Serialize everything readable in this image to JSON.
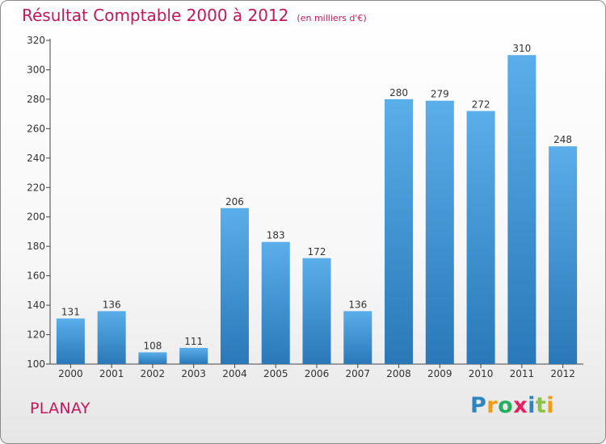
{
  "chart_data": {
    "type": "bar",
    "title": "Résultat Comptable 2000 à 2012",
    "subtitle": "(en milliers d'€)",
    "categories": [
      "2000",
      "2001",
      "2002",
      "2003",
      "2004",
      "2005",
      "2006",
      "2007",
      "2008",
      "2009",
      "2010",
      "2011",
      "2012"
    ],
    "values": [
      131,
      136,
      108,
      111,
      206,
      183,
      172,
      136,
      280,
      279,
      272,
      310,
      248
    ],
    "ylim": [
      100,
      320
    ],
    "yticks": [
      100,
      120,
      140,
      160,
      180,
      200,
      220,
      240,
      260,
      280,
      300,
      320
    ],
    "grid": false,
    "bar_color": "#3a8fd6"
  },
  "commune": "PLANAY",
  "logo": {
    "letters": [
      "P",
      "r",
      "o",
      "x",
      "i",
      "t",
      "i"
    ],
    "colors": [
      "#2e86c1",
      "#f39c12",
      "#27ae60",
      "#e91e63",
      "#2e86c1",
      "#8bc34a",
      "#f39c12"
    ]
  }
}
